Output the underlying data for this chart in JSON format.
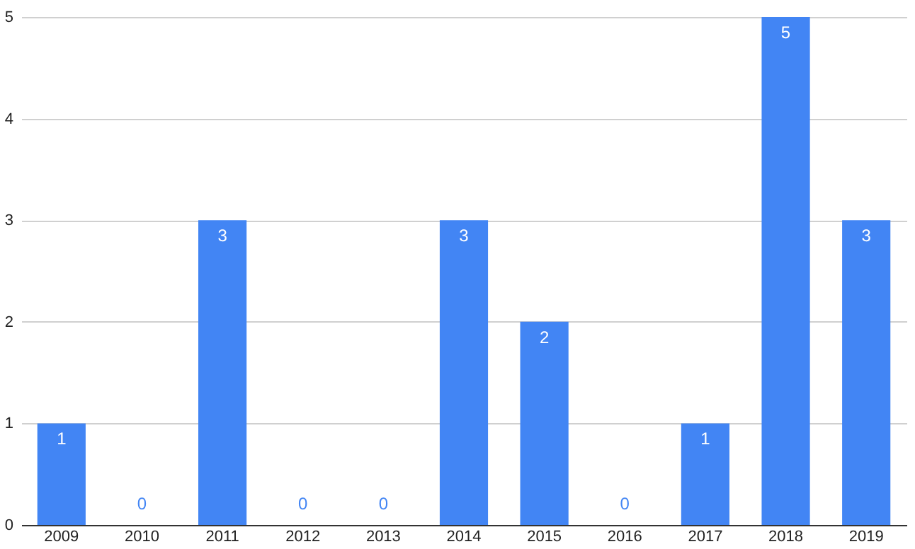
{
  "chart_data": {
    "type": "bar",
    "categories": [
      "2009",
      "2010",
      "2011",
      "2012",
      "2013",
      "2014",
      "2015",
      "2016",
      "2017",
      "2018",
      "2019"
    ],
    "values": [
      1,
      0,
      3,
      0,
      0,
      3,
      2,
      0,
      1,
      5,
      3
    ],
    "color": "#4285f4",
    "ylim": [
      0,
      5
    ],
    "yticks": [
      0,
      1,
      2,
      3,
      4,
      5
    ],
    "grid": "y",
    "data_labels": true
  }
}
